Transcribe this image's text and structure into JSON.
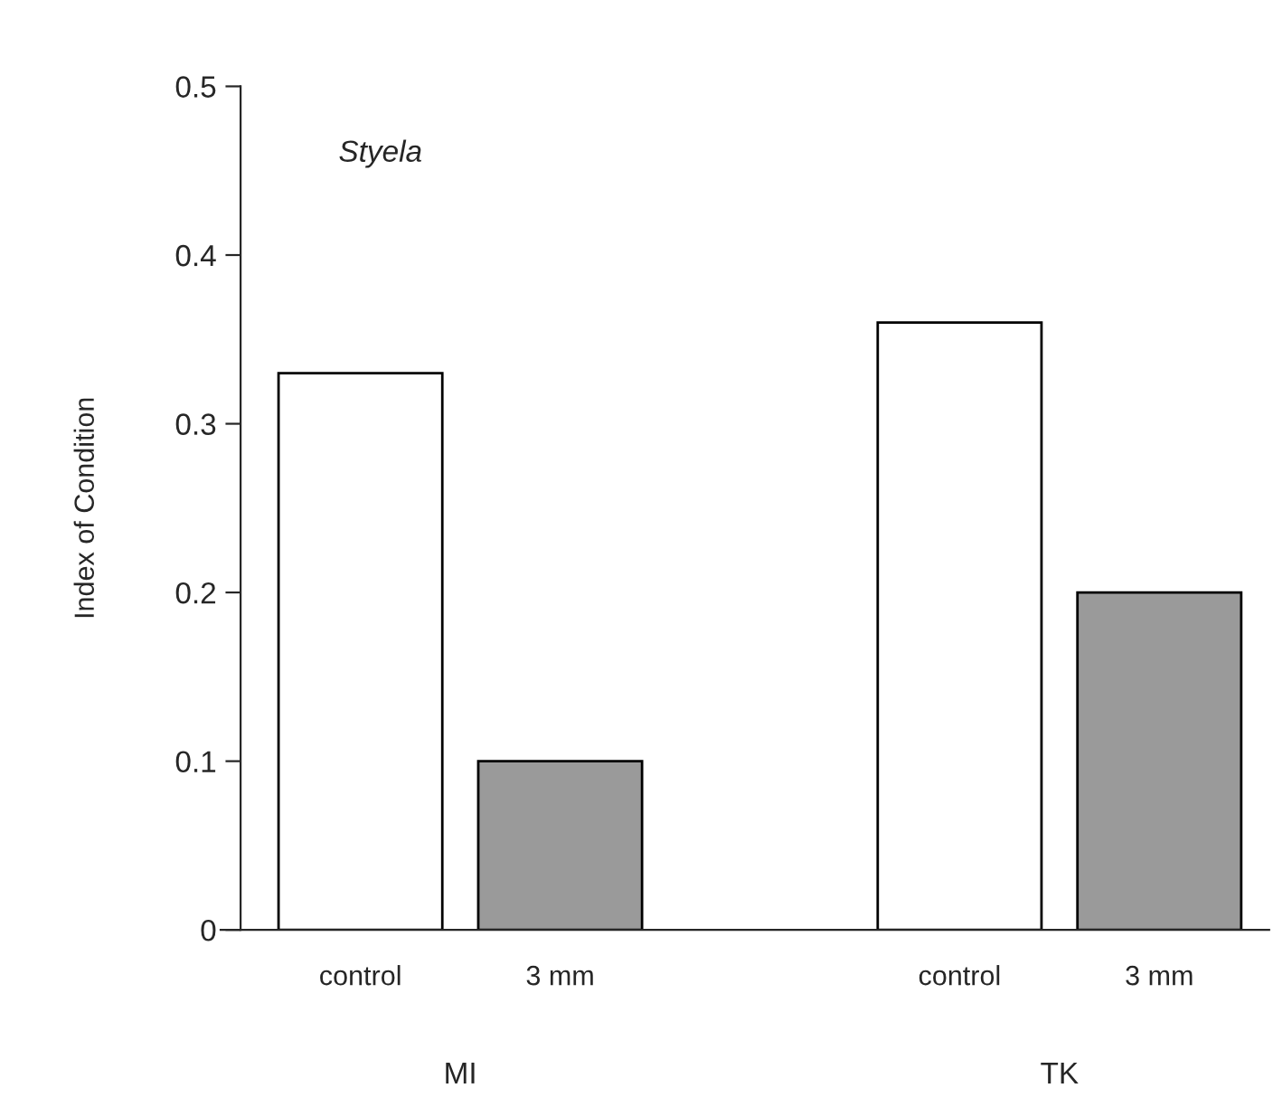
{
  "chart_data": {
    "type": "bar",
    "categories": [
      "control",
      "3 mm",
      null,
      "control",
      "3 mm"
    ],
    "values": [
      0.33,
      0.1,
      null,
      0.36,
      0.2
    ],
    "colors": [
      "#ffffff",
      "#9a9a9a",
      null,
      "#ffffff",
      "#9a9a9a"
    ],
    "ylabel": "Index of Condition",
    "ylim": [
      0,
      0.5
    ],
    "yticks": [
      {
        "value": 0,
        "label": "0"
      },
      0.1,
      0.2,
      0.3,
      0.4,
      0.5
    ],
    "annotations": [
      "Styela",
      "MI",
      "TK"
    ],
    "grid": false,
    "legend": false
  }
}
